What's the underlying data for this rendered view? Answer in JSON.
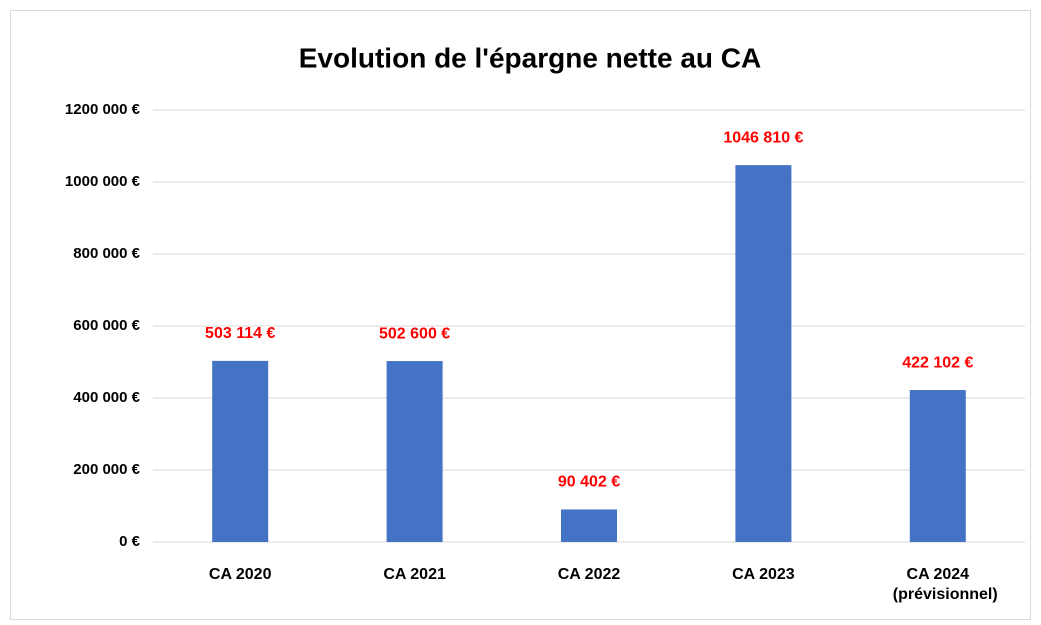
{
  "chart_data": {
    "type": "bar",
    "title": "Evolution de l'épargne nette au CA",
    "categories": [
      "CA 2020",
      "CA 2021",
      "CA 2022",
      "CA 2023",
      "CA 2024 (prévisionnel)"
    ],
    "values": [
      503114,
      502600,
      90402,
      1046810,
      422102
    ],
    "value_labels": [
      "503 114 €",
      "502 600 €",
      "90 402 €",
      "1046 810 €",
      "422 102 €"
    ],
    "color": "#4472c4",
    "value_label_color": "#ff0000",
    "ylim": [
      0,
      1200000
    ],
    "yticks": [
      {
        "value": 0,
        "label": "0 €"
      },
      {
        "value": 200000,
        "label": "200 000 €"
      },
      {
        "value": 400000,
        "label": "400 000 €"
      },
      {
        "value": 600000,
        "label": "600 000 €"
      },
      {
        "value": 800000,
        "label": "800 000 €"
      },
      {
        "value": 1000000,
        "label": "1000 000 €"
      },
      {
        "value": 1200000,
        "label": "1200 000 €"
      }
    ],
    "grid": true
  }
}
